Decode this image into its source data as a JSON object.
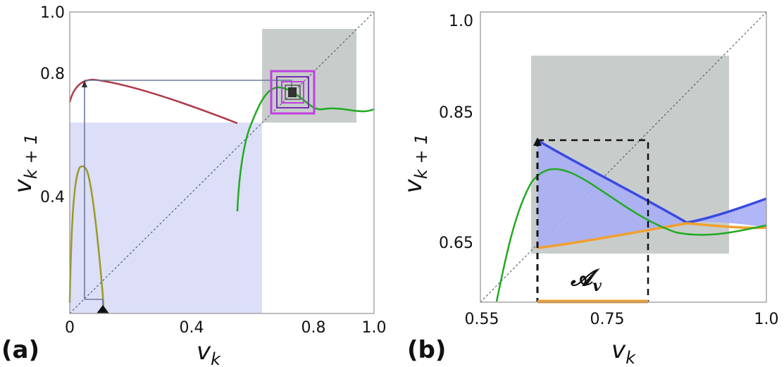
{
  "panels": [
    {
      "id": "a",
      "panel_label": "(a)",
      "xlabel_main": "v",
      "xlabel_sub": "k",
      "ylabel_main": "v",
      "ylabel_sub": "k + 1",
      "xticks": [
        "0",
        "0.4",
        "0.8",
        "1.0"
      ],
      "yticks": [
        "0.4",
        "0.8",
        "1.0"
      ]
    },
    {
      "id": "b",
      "panel_label": "(b)",
      "xlabel_main": "v",
      "xlabel_sub": "k",
      "ylabel_main": "v",
      "ylabel_sub": "k + 1",
      "xticks": [
        "0.55",
        "0.75",
        "1.0"
      ],
      "yticks": [
        "0.65",
        "0.85",
        "1.0"
      ],
      "annotation": "𝓐",
      "annotation_sub": "v"
    }
  ],
  "chart_data": [
    {
      "type": "line",
      "panel": "a",
      "xlim": [
        0,
        1.0
      ],
      "ylim": [
        0,
        1.0
      ],
      "grid": false,
      "series": [
        {
          "color": "#b03a48",
          "x": [
            0,
            0.02,
            0.05,
            0.08,
            0.12,
            0.18,
            0.25,
            0.33,
            0.42,
            0.5,
            0.55
          ],
          "y": [
            0.7,
            0.74,
            0.765,
            0.775,
            0.77,
            0.755,
            0.735,
            0.71,
            0.685,
            0.665,
            0.66
          ]
        },
        {
          "color": "#9a9a22",
          "x": [
            0,
            0.005,
            0.015,
            0.03,
            0.045,
            0.06,
            0.075,
            0.09,
            0.1,
            0.11
          ],
          "y": [
            0.0,
            0.25,
            0.42,
            0.48,
            0.49,
            0.47,
            0.4,
            0.25,
            0.12,
            0.0
          ]
        },
        {
          "color": "#22aa22",
          "x": [
            0.55,
            0.56,
            0.58,
            0.6,
            0.63,
            0.66,
            0.69,
            0.72,
            0.75,
            0.78,
            0.82,
            0.87,
            0.92,
            0.96,
            1.0
          ],
          "y": [
            0.35,
            0.45,
            0.55,
            0.62,
            0.68,
            0.72,
            0.735,
            0.73,
            0.71,
            0.685,
            0.67,
            0.66,
            0.66,
            0.665,
            0.675
          ]
        },
        {
          "color": "#7b8bbd",
          "x": [
            0.05,
            0.05,
            0.8,
            0.8
          ],
          "y": [
            0.04,
            0.765,
            0.765,
            0.74
          ]
        },
        {
          "color": "#7b8bbd",
          "x": [
            0.05,
            0.1,
            0.1
          ],
          "y": [
            0.04,
            0.04,
            0.0
          ]
        }
      ],
      "regions": [
        {
          "color": "#dcdff7",
          "x": [
            0,
            0.63
          ],
          "y": [
            0,
            0.63
          ]
        },
        {
          "color": "#c8cdcc",
          "x": [
            0.63,
            0.94
          ],
          "y": [
            0.63,
            0.94
          ]
        }
      ],
      "marker_x": 0.1
    },
    {
      "type": "line",
      "panel": "b",
      "xlim": [
        0.55,
        1.0
      ],
      "ylim": [
        0.55,
        1.0
      ],
      "grid": false,
      "series": [
        {
          "color": "#3a4be0",
          "x": [
            0.63,
            0.66,
            0.7,
            0.74,
            0.78,
            0.82,
            0.86,
            0.9,
            0.93,
            0.96,
            1.0
          ],
          "y": [
            0.825,
            0.805,
            0.785,
            0.76,
            0.735,
            0.712,
            0.695,
            0.678,
            0.682,
            0.698,
            0.72
          ]
        },
        {
          "color": "#f0a030",
          "x": [
            0.63,
            0.68,
            0.73,
            0.78,
            0.83,
            0.88,
            0.92,
            0.96,
            1.0
          ],
          "y": [
            0.64,
            0.645,
            0.652,
            0.66,
            0.668,
            0.676,
            0.683,
            0.678,
            0.672
          ]
        },
        {
          "color": "#22aa22",
          "x": [
            0.58,
            0.6,
            0.62,
            0.64,
            0.67,
            0.7,
            0.73,
            0.76,
            0.8,
            0.85,
            0.9,
            0.95,
            1.0
          ],
          "y": [
            0.55,
            0.63,
            0.705,
            0.745,
            0.77,
            0.77,
            0.755,
            0.735,
            0.705,
            0.68,
            0.665,
            0.668,
            0.675
          ]
        },
        {
          "color": "#111111",
          "x": [
            0.63,
            0.8,
            0.8
          ],
          "y": [
            0.825,
            0.825,
            0.555
          ]
        },
        {
          "color": "#f0a030",
          "x": [
            0.63,
            0.8
          ],
          "y": [
            0.555,
            0.555
          ]
        }
      ],
      "regions": [
        {
          "color": "#c8cdcc",
          "x": [
            0.63,
            0.93
          ],
          "y": [
            0.63,
            0.94
          ]
        }
      ],
      "marker_x": 0.63
    }
  ]
}
